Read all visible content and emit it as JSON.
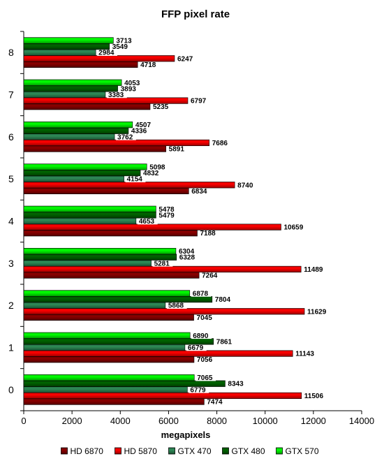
{
  "chart_data": {
    "type": "bar",
    "orientation": "horizontal",
    "title": "FFP pixel rate",
    "xlabel": "megapixels",
    "ylabel": "",
    "xlim": [
      0,
      14000
    ],
    "x_ticks": [
      0,
      2000,
      4000,
      6000,
      8000,
      10000,
      12000,
      14000
    ],
    "categories": [
      "0",
      "1",
      "2",
      "3",
      "4",
      "5",
      "6",
      "7",
      "8"
    ],
    "grid": false,
    "legend_position": "bottom",
    "series": [
      {
        "name": "HD 6870",
        "color": "#8b0000",
        "values": [
          7474,
          7056,
          7045,
          7264,
          7188,
          6834,
          5891,
          5235,
          4718
        ]
      },
      {
        "name": "HD 5870",
        "color": "#ff0000",
        "values": [
          11506,
          11143,
          11629,
          11489,
          10659,
          8740,
          7686,
          6797,
          6247
        ]
      },
      {
        "name": "GTX 470",
        "color": "#2e8b57",
        "values": [
          6779,
          6679,
          5868,
          5281,
          4653,
          4154,
          3762,
          3383,
          2984
        ]
      },
      {
        "name": "GTX 480",
        "color": "#006400",
        "values": [
          8343,
          7861,
          7804,
          6328,
          5479,
          4832,
          4336,
          3893,
          3549
        ]
      },
      {
        "name": "GTX 570",
        "color": "#00ff00",
        "values": [
          7065,
          6890,
          6878,
          6304,
          5478,
          5098,
          4507,
          4053,
          3713
        ]
      }
    ]
  }
}
